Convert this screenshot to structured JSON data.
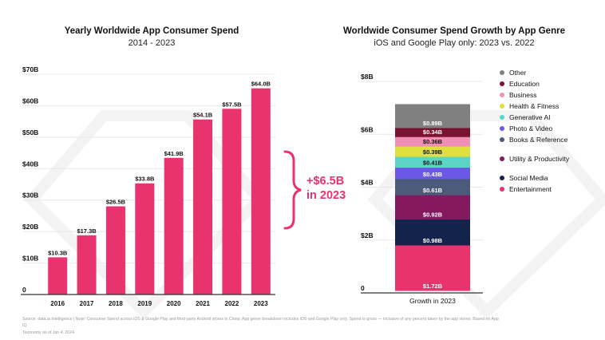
{
  "chart_data": [
    {
      "type": "bar",
      "title": "Yearly Worldwide App Consumer Spend",
      "subtitle": "2014 - 2023",
      "xlabel": "",
      "ylabel": "",
      "categories": [
        "2016",
        "2017",
        "2018",
        "2019",
        "2020",
        "2021",
        "2022",
        "2023"
      ],
      "values": [
        10.3,
        17.3,
        26.5,
        33.8,
        41.9,
        54.1,
        57.5,
        64.0
      ],
      "data_labels": [
        "$10.3B",
        "$17.3B",
        "$26.5B",
        "$33.8B",
        "$41.9B",
        "$54.1B",
        "$57.5B",
        "$64.0B"
      ],
      "ylim": [
        0,
        70
      ],
      "yticks": [
        0,
        10,
        20,
        30,
        40,
        50,
        60,
        70
      ],
      "ytick_labels": [
        "0",
        "$10B",
        "$20B",
        "$30B",
        "$40B",
        "$50B",
        "$60B",
        "$70B"
      ],
      "grid": true,
      "bar_color": "#e8336e",
      "annotation": {
        "line1": "+$6.5B",
        "line2": "in 2023",
        "color": "#e8336e"
      }
    },
    {
      "type": "bar",
      "stacked": true,
      "title": "Worldwide Consumer Spend Growth by App Genre",
      "subtitle": "iOS and Google Play only: 2023 vs. 2022",
      "categories": [
        "Growth in 2023"
      ],
      "ylim": [
        0,
        8
      ],
      "yticks": [
        0,
        2,
        4,
        6,
        8
      ],
      "ytick_labels": [
        "0",
        "$2B",
        "$4B",
        "$6B",
        "$8B"
      ],
      "grid": true,
      "legend_position": "right",
      "series": [
        {
          "name": "Entertainment",
          "values": [
            1.72
          ],
          "label": "$1.72B",
          "color": "#e8336e",
          "label_color": "#ffffff"
        },
        {
          "name": "Social Media",
          "values": [
            0.98
          ],
          "label": "$0.98B",
          "color": "#14234b",
          "label_color": "#ffffff"
        },
        {
          "name": "Utility & Productivity",
          "values": [
            0.92
          ],
          "label": "$0.92B",
          "color": "#85195f",
          "label_color": "#ffffff"
        },
        {
          "name": "Books & Reference",
          "values": [
            0.61
          ],
          "label": "$0.61B",
          "color": "#4d5b7a",
          "label_color": "#ffffff"
        },
        {
          "name": "Photo & Video",
          "values": [
            0.43
          ],
          "label": "$0.43B",
          "color": "#6b57e8",
          "label_color": "#ffffff"
        },
        {
          "name": "Generative AI",
          "values": [
            0.41
          ],
          "label": "$0.41B",
          "color": "#5dd5c6",
          "label_color": "#111111"
        },
        {
          "name": "Health & Fitness",
          "values": [
            0.39
          ],
          "label": "$0.39B",
          "color": "#dfe040",
          "label_color": "#111111"
        },
        {
          "name": "Business",
          "values": [
            0.36
          ],
          "label": "$0.36B",
          "color": "#f28fb6",
          "label_color": "#111111"
        },
        {
          "name": "Education",
          "values": [
            0.34
          ],
          "label": "$0.34B",
          "color": "#7a1232",
          "label_color": "#ffffff"
        },
        {
          "name": "Other",
          "values": [
            0.89
          ],
          "label": "$0.89B",
          "color": "#808080",
          "label_color": "#ffffff"
        }
      ],
      "legend": [
        {
          "name": "Other",
          "color": "#808080"
        },
        {
          "name": "Education",
          "color": "#7a1232"
        },
        {
          "name": "Business",
          "color": "#f28fb6"
        },
        {
          "name": "Health & Fitness",
          "color": "#dfe040"
        },
        {
          "name": "Generative AI",
          "color": "#5dd5c6"
        },
        {
          "name": "Photo & Video",
          "color": "#6b57e8"
        },
        {
          "name": "Books & Reference",
          "color": "#4d5b7a"
        },
        {
          "name": "Utility & Productivity",
          "color": "#85195f"
        },
        {
          "name": "Social Media",
          "color": "#14234b"
        },
        {
          "name": "Entertainment",
          "color": "#e8336e"
        }
      ]
    }
  ],
  "footnote": {
    "line1": "Source: data.ai Intelligence | Note: Consumer Spend across iOS & Google Play and third-party Android stores in China; App genre breakdown includes iOS and Google Play only. Spend is gross — inclusive of any percent taken by the app stores. Based on App IQ",
    "line2": "Taxonomy as of Jan 4, 2024."
  }
}
